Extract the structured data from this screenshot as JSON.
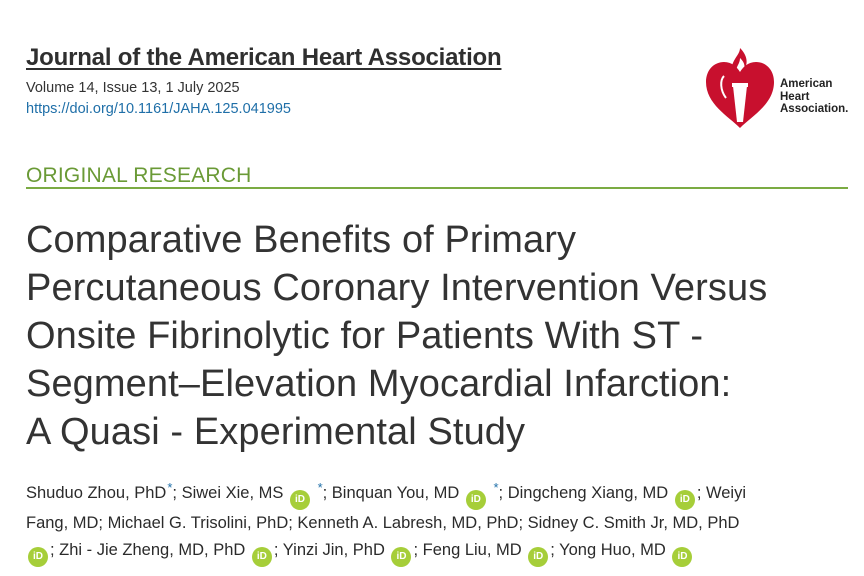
{
  "journal": {
    "title": "Journal of the American Heart Association",
    "volume": "Volume 14, Issue 13, 1 July 2025",
    "doi": "https://doi.org/10.1161/JAHA.125.041995"
  },
  "logo": {
    "text_line1": "American",
    "text_line2": "Heart",
    "text_line3": "Association.",
    "color": "#c8102e"
  },
  "section": {
    "label": "ORIGINAL RESEARCH",
    "color": "#6a9a36"
  },
  "article": {
    "title_lines": [
      "Comparative Benefits of Primary",
      "Percutaneous Coronary Intervention Versus",
      "Onsite Fibrinolytic for Patients With ST ‐",
      "Segment–Elevation Myocardial Infarction:",
      "A Quasi ‐ Experimental Study"
    ]
  },
  "authors": {
    "orcid_icon_text": "iD",
    "star": "*",
    "line1": {
      "a1": "Shuduo Zhou, PhD",
      "a2": "; Siwei Xie, MS ",
      "a3": "; Binquan You, MD ",
      "a4": "; Dingcheng Xiang, MD ",
      "a5": "; Weiyi"
    },
    "line2": "Fang, MD; Michael G. Trisolini, PhD; Kenneth A. Labresh, MD, PhD; Sidney C. Smith Jr, MD, PhD",
    "line3": {
      "a1": "; Zhi ‐ Jie Zheng, MD, PhD ",
      "a2": "; Yinzi Jin, PhD ",
      "a3": "; Feng Liu, MD ",
      "a4": "; Yong Huo, MD "
    }
  }
}
